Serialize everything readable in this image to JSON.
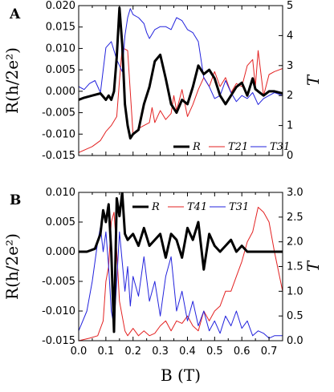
{
  "chart_data": [
    {
      "panel": "A",
      "type": "line",
      "ylabel": "R(h/2e²)",
      "y2label": "T",
      "xlim": [
        0.0,
        0.75
      ],
      "ylim": [
        -0.015,
        0.02
      ],
      "y2lim": [
        0,
        5
      ],
      "yticks": [
        "-0.015",
        "-0.010",
        "-0.005",
        "0.000",
        "0.005",
        "0.010",
        "0.015",
        "0.020"
      ],
      "y2ticks": [
        "0",
        "1",
        "2",
        "3",
        "4",
        "5"
      ],
      "legend": {
        "position": "bottom-right",
        "entries": [
          "R",
          "T21",
          "T31"
        ]
      },
      "series": [
        {
          "name": "R",
          "axis": "left",
          "color": "#000000",
          "x": [
            0.0,
            0.02,
            0.05,
            0.08,
            0.1,
            0.11,
            0.12,
            0.13,
            0.14,
            0.15,
            0.16,
            0.17,
            0.18,
            0.19,
            0.2,
            0.22,
            0.24,
            0.26,
            0.28,
            0.3,
            0.32,
            0.34,
            0.36,
            0.38,
            0.4,
            0.42,
            0.44,
            0.46,
            0.48,
            0.5,
            0.52,
            0.54,
            0.56,
            0.58,
            0.6,
            0.62,
            0.64,
            0.65,
            0.66,
            0.68,
            0.7,
            0.72,
            0.75
          ],
          "y": [
            -0.002,
            -0.0015,
            -0.001,
            -0.0005,
            -0.002,
            -0.001,
            -0.002,
            0.0,
            0.008,
            0.0195,
            0.011,
            -0.003,
            -0.008,
            -0.011,
            -0.01,
            -0.009,
            -0.003,
            0.001,
            0.007,
            0.0085,
            0.003,
            -0.003,
            -0.005,
            -0.002,
            -0.003,
            0.001,
            0.006,
            0.004,
            0.005,
            0.003,
            -0.001,
            -0.003,
            -0.001,
            0.001,
            0.002,
            -0.001,
            0.003,
            0.0005,
            0.0,
            -0.001,
            0.0,
            0.0,
            -0.0005
          ]
        },
        {
          "name": "T21",
          "axis": "right",
          "color": "#e32222",
          "x": [
            0.0,
            0.05,
            0.08,
            0.1,
            0.12,
            0.14,
            0.15,
            0.16,
            0.18,
            0.2,
            0.22,
            0.24,
            0.26,
            0.27,
            0.28,
            0.3,
            0.32,
            0.34,
            0.35,
            0.36,
            0.38,
            0.4,
            0.42,
            0.44,
            0.46,
            0.48,
            0.5,
            0.52,
            0.54,
            0.56,
            0.58,
            0.6,
            0.62,
            0.64,
            0.65,
            0.66,
            0.68,
            0.7,
            0.72,
            0.75
          ],
          "y": [
            0.1,
            0.3,
            0.5,
            0.8,
            1.0,
            1.3,
            2.5,
            3.6,
            3.5,
            0.7,
            0.9,
            1.0,
            1.1,
            1.6,
            1.1,
            1.5,
            1.2,
            1.4,
            2.0,
            1.5,
            2.2,
            1.3,
            1.7,
            2.2,
            2.6,
            2.3,
            2.8,
            2.3,
            2.6,
            2.1,
            2.4,
            2.3,
            3.0,
            3.2,
            2.3,
            3.5,
            2.0,
            2.7,
            2.8,
            2.9
          ]
        },
        {
          "name": "T31",
          "axis": "right",
          "color": "#2323dd",
          "x": [
            0.0,
            0.02,
            0.04,
            0.06,
            0.08,
            0.1,
            0.12,
            0.14,
            0.15,
            0.16,
            0.17,
            0.18,
            0.19,
            0.2,
            0.22,
            0.24,
            0.25,
            0.26,
            0.28,
            0.3,
            0.32,
            0.34,
            0.36,
            0.38,
            0.4,
            0.42,
            0.44,
            0.46,
            0.48,
            0.5,
            0.52,
            0.54,
            0.56,
            0.58,
            0.6,
            0.62,
            0.64,
            0.66,
            0.68,
            0.7,
            0.72,
            0.75
          ],
          "y": [
            2.3,
            2.2,
            2.4,
            2.5,
            2.1,
            3.6,
            3.8,
            3.2,
            3.0,
            2.8,
            4.0,
            4.6,
            4.9,
            4.7,
            4.6,
            4.4,
            4.1,
            3.9,
            4.2,
            4.3,
            4.3,
            4.2,
            4.6,
            4.5,
            4.2,
            4.1,
            3.8,
            2.6,
            2.3,
            1.9,
            2.0,
            2.5,
            2.1,
            1.8,
            2.0,
            1.9,
            2.1,
            1.7,
            1.9,
            2.0,
            2.1,
            2.0
          ]
        }
      ]
    },
    {
      "panel": "B",
      "type": "line",
      "xlabel": "B (T)",
      "ylabel": "R(h/2e²)",
      "y2label": "T",
      "xlim": [
        0.0,
        0.75
      ],
      "ylim": [
        -0.015,
        0.01
      ],
      "y2lim": [
        0,
        3.0
      ],
      "xticks": [
        "0.0",
        "0.1",
        "0.2",
        "0.3",
        "0.4",
        "0.5",
        "0.6",
        "0.7"
      ],
      "yticks": [
        "-0.015",
        "-0.010",
        "-0.005",
        "0.000",
        "0.005",
        "0.010"
      ],
      "y2ticks": [
        "0.0",
        "0.5",
        "1.0",
        "1.5",
        "2.0",
        "2.5",
        "3.0"
      ],
      "legend": {
        "position": "top-center",
        "entries": [
          "R",
          "T41",
          "T31"
        ]
      },
      "series": [
        {
          "name": "R",
          "axis": "left",
          "color": "#000000",
          "x": [
            0.0,
            0.03,
            0.06,
            0.08,
            0.09,
            0.1,
            0.11,
            0.12,
            0.13,
            0.14,
            0.15,
            0.16,
            0.17,
            0.18,
            0.2,
            0.22,
            0.24,
            0.26,
            0.28,
            0.3,
            0.32,
            0.34,
            0.36,
            0.38,
            0.4,
            0.42,
            0.44,
            0.46,
            0.48,
            0.5,
            0.52,
            0.54,
            0.56,
            0.58,
            0.6,
            0.62,
            0.64,
            0.66,
            0.68,
            0.7,
            0.72,
            0.75
          ],
          "y": [
            0.0,
            0.0,
            0.0005,
            0.003,
            0.007,
            0.005,
            0.008,
            0.0,
            -0.0135,
            0.009,
            0.006,
            0.01,
            0.003,
            0.002,
            0.003,
            0.001,
            0.004,
            0.001,
            0.002,
            0.003,
            -0.001,
            0.003,
            0.002,
            -0.001,
            0.004,
            0.002,
            0.005,
            -0.003,
            0.003,
            0.001,
            0.0,
            0.001,
            0.002,
            0.0,
            0.001,
            0.0,
            0.0,
            0.0,
            0.0,
            0.0,
            0.0,
            0.0
          ]
        },
        {
          "name": "T41",
          "axis": "right",
          "color": "#e32222",
          "x": [
            0.0,
            0.04,
            0.07,
            0.09,
            0.1,
            0.11,
            0.12,
            0.13,
            0.14,
            0.15,
            0.16,
            0.17,
            0.18,
            0.2,
            0.22,
            0.24,
            0.26,
            0.28,
            0.3,
            0.32,
            0.34,
            0.36,
            0.38,
            0.4,
            0.42,
            0.44,
            0.46,
            0.48,
            0.5,
            0.52,
            0.54,
            0.56,
            0.58,
            0.6,
            0.62,
            0.64,
            0.66,
            0.68,
            0.7,
            0.72,
            0.75
          ],
          "y": [
            0.0,
            0.05,
            0.1,
            0.4,
            1.2,
            1.5,
            2.4,
            2.6,
            1.8,
            0.8,
            0.5,
            0.2,
            0.1,
            0.25,
            0.1,
            0.2,
            0.1,
            0.15,
            0.3,
            0.4,
            0.2,
            0.4,
            0.35,
            0.5,
            0.3,
            0.2,
            0.6,
            0.4,
            0.6,
            0.7,
            1.0,
            1.0,
            1.3,
            1.6,
            2.0,
            2.2,
            2.7,
            2.6,
            2.4,
            1.8,
            1.0
          ]
        },
        {
          "name": "T31",
          "axis": "right",
          "color": "#2323dd",
          "x": [
            0.0,
            0.03,
            0.05,
            0.07,
            0.08,
            0.09,
            0.1,
            0.11,
            0.12,
            0.13,
            0.14,
            0.15,
            0.16,
            0.17,
            0.18,
            0.19,
            0.2,
            0.22,
            0.24,
            0.26,
            0.28,
            0.3,
            0.32,
            0.34,
            0.36,
            0.38,
            0.4,
            0.42,
            0.44,
            0.46,
            0.48,
            0.5,
            0.52,
            0.54,
            0.56,
            0.58,
            0.6,
            0.62,
            0.64,
            0.66,
            0.68,
            0.7,
            0.72,
            0.75
          ],
          "y": [
            0.2,
            0.6,
            1.2,
            2.0,
            2.3,
            1.8,
            2.2,
            1.5,
            0.6,
            0.3,
            1.2,
            2.2,
            1.6,
            1.0,
            1.5,
            0.7,
            1.3,
            0.9,
            1.7,
            0.8,
            1.2,
            0.5,
            1.3,
            1.7,
            0.6,
            1.0,
            0.4,
            0.8,
            0.3,
            0.6,
            0.2,
            0.4,
            0.15,
            0.5,
            0.3,
            0.6,
            0.25,
            0.4,
            0.1,
            0.2,
            0.15,
            0.05,
            0.1,
            0.1
          ]
        }
      ]
    }
  ]
}
